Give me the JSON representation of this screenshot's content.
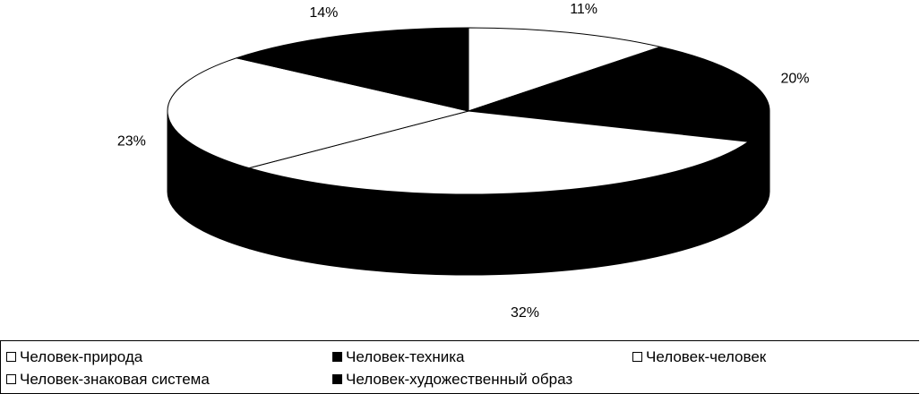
{
  "chart_data": {
    "type": "pie",
    "title": "",
    "categories": [
      "Человек-природа",
      "Человек-техника",
      "Человек-человек",
      "Человек-знаковая система",
      "Человек-художественный образ"
    ],
    "values": [
      11,
      20,
      32,
      23,
      14
    ],
    "labels": [
      "11%",
      "20%",
      "32%",
      "23%",
      "14%"
    ],
    "colors": [
      "#ffffff",
      "#000000",
      "#ffffff",
      "#ffffff",
      "#000000"
    ],
    "legend_position": "bottom"
  }
}
